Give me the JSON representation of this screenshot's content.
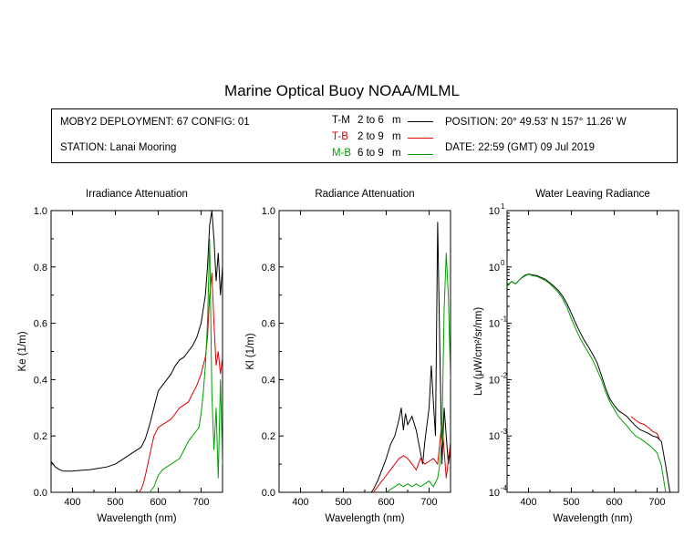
{
  "title": "Marine Optical Buoy NOAA/MLML",
  "info": {
    "deployment": "MOBY2 DEPLOYMENT: 67 CONFIG: 01",
    "station": "STATION: Lanai Mooring",
    "position": "POSITION: 20° 49.53' N   157° 11.26' W",
    "date": "DATE: 22:59 (GMT) 09 Jul 2019"
  },
  "legend": [
    {
      "code": "T-M",
      "range": "2 to 6",
      "unit": "m",
      "color": "#000000"
    },
    {
      "code": "T-B",
      "range": "2 to 9",
      "unit": "m",
      "color": "#e00000"
    },
    {
      "code": "M-B",
      "range": "6 to 9",
      "unit": "m",
      "color": "#00a000"
    }
  ],
  "chart_data": [
    {
      "type": "line",
      "title": "Irradiance Attenuation",
      "xlabel": "Wavelength (nm)",
      "ylabel": "Ke  (1/m)",
      "xlim": [
        350,
        750
      ],
      "ylim": [
        0,
        1
      ],
      "xticks": [
        "400",
        "500",
        "600",
        "700"
      ],
      "yticks": [
        "0.0",
        "0.2",
        "0.4",
        "0.6",
        "0.8",
        "1.0"
      ],
      "series": [
        {
          "name": "T-M",
          "color": "#000000",
          "x": [
            350,
            360,
            370,
            380,
            390,
            400,
            420,
            440,
            460,
            480,
            500,
            520,
            540,
            560,
            570,
            580,
            590,
            600,
            610,
            620,
            630,
            640,
            650,
            660,
            670,
            680,
            690,
            700,
            710,
            715,
            720,
            725,
            730,
            735,
            740,
            745,
            750
          ],
          "y": [
            0.11,
            0.09,
            0.08,
            0.075,
            0.075,
            0.075,
            0.078,
            0.08,
            0.085,
            0.09,
            0.1,
            0.12,
            0.14,
            0.16,
            0.19,
            0.24,
            0.3,
            0.36,
            0.38,
            0.4,
            0.42,
            0.45,
            0.47,
            0.48,
            0.5,
            0.52,
            0.55,
            0.6,
            0.7,
            0.8,
            0.95,
            1.0,
            0.9,
            0.75,
            0.85,
            0.7,
            0.8
          ]
        },
        {
          "name": "T-B",
          "color": "#e00000",
          "x": [
            555,
            560,
            565,
            570,
            580,
            590,
            600,
            610,
            620,
            630,
            640,
            650,
            660,
            670,
            680,
            690,
            700,
            705,
            710,
            715,
            720,
            725,
            730,
            735,
            740,
            745,
            750
          ],
          "y": [
            0.0,
            0.01,
            0.03,
            0.06,
            0.13,
            0.2,
            0.23,
            0.24,
            0.25,
            0.26,
            0.28,
            0.3,
            0.31,
            0.32,
            0.35,
            0.38,
            0.42,
            0.45,
            0.48,
            0.55,
            0.7,
            0.78,
            0.6,
            0.45,
            0.5,
            0.42,
            0.48
          ]
        },
        {
          "name": "M-B",
          "color": "#00a000",
          "x": [
            580,
            590,
            600,
            610,
            620,
            630,
            640,
            650,
            660,
            670,
            680,
            690,
            695,
            700,
            705,
            710,
            715,
            720,
            725,
            730,
            735,
            740,
            745,
            750
          ],
          "y": [
            0.0,
            0.02,
            0.06,
            0.08,
            0.09,
            0.1,
            0.11,
            0.12,
            0.15,
            0.18,
            0.2,
            0.22,
            0.23,
            0.28,
            0.35,
            0.45,
            0.6,
            0.9,
            0.35,
            0.15,
            0.3,
            0.05,
            0.4,
            0.1
          ]
        }
      ]
    },
    {
      "type": "line",
      "title": "Radiance Attenuation",
      "xlabel": "Wavelength (nm)",
      "ylabel": "Kl  (1/m)",
      "xlim": [
        350,
        750
      ],
      "ylim": [
        0,
        1
      ],
      "xticks": [
        "400",
        "500",
        "600",
        "700"
      ],
      "yticks": [
        "0.0",
        "0.2",
        "0.4",
        "0.6",
        "0.8",
        "1.0"
      ],
      "series": [
        {
          "name": "T-M",
          "color": "#000000",
          "x": [
            565,
            570,
            580,
            590,
            600,
            610,
            620,
            630,
            635,
            640,
            645,
            650,
            660,
            670,
            680,
            685,
            690,
            700,
            705,
            710,
            715,
            720,
            725,
            730,
            735,
            740,
            745,
            750
          ],
          "y": [
            0.0,
            0.01,
            0.04,
            0.08,
            0.12,
            0.17,
            0.2,
            0.26,
            0.3,
            0.22,
            0.28,
            0.24,
            0.27,
            0.22,
            0.14,
            0.1,
            0.18,
            0.3,
            0.45,
            0.32,
            0.2,
            0.96,
            0.5,
            0.1,
            0.3,
            0.2,
            0.1,
            0.15
          ]
        },
        {
          "name": "T-B",
          "color": "#e00000",
          "x": [
            570,
            580,
            590,
            600,
            610,
            620,
            630,
            640,
            650,
            660,
            670,
            680,
            690,
            700,
            710,
            720,
            730,
            740,
            750
          ],
          "y": [
            0.0,
            0.02,
            0.04,
            0.06,
            0.08,
            0.1,
            0.12,
            0.13,
            0.12,
            0.1,
            0.08,
            0.12,
            0.1,
            0.11,
            0.12,
            0.1,
            0.25,
            0.05,
            0.18
          ]
        },
        {
          "name": "M-B",
          "color": "#00a000",
          "x": [
            600,
            610,
            620,
            630,
            640,
            650,
            660,
            670,
            680,
            690,
            700,
            710,
            720,
            725,
            730,
            735,
            740,
            745,
            750
          ],
          "y": [
            0.0,
            0.01,
            0.02,
            0.03,
            0.02,
            0.03,
            0.02,
            0.03,
            0.02,
            0.03,
            0.04,
            0.02,
            0.05,
            0.1,
            0.2,
            0.65,
            0.85,
            0.7,
            0.4
          ]
        }
      ]
    },
    {
      "type": "line",
      "title": "Water Leaving Radiance",
      "xlabel": "Wavelength (nm)",
      "ylabel": "Lw  (μW/cm²/sr/nm)",
      "xlim": [
        350,
        750
      ],
      "ylim": [
        0.0001,
        10
      ],
      "yscale": "log",
      "xticks": [
        "400",
        "500",
        "600",
        "700"
      ],
      "yticks": [
        "10",
        "10",
        "10",
        "10",
        "10",
        "10"
      ],
      "yexponents": [
        "1",
        "0",
        "-1",
        "-2",
        "-3",
        "-4"
      ],
      "series": [
        {
          "name": "T-M",
          "color": "#000000",
          "x": [
            350,
            360,
            370,
            380,
            390,
            400,
            410,
            420,
            430,
            440,
            450,
            460,
            470,
            480,
            490,
            500,
            510,
            520,
            530,
            540,
            550,
            560,
            570,
            580,
            590,
            600,
            610,
            620,
            630,
            640,
            650,
            660,
            670,
            680,
            690,
            700,
            710,
            720,
            730
          ],
          "y": [
            0.45,
            0.55,
            0.5,
            0.6,
            0.7,
            0.75,
            0.72,
            0.7,
            0.65,
            0.6,
            0.52,
            0.45,
            0.38,
            0.3,
            0.22,
            0.15,
            0.1,
            0.07,
            0.05,
            0.038,
            0.028,
            0.02,
            0.012,
            0.007,
            0.0045,
            0.0035,
            0.0028,
            0.0025,
            0.0022,
            0.0018,
            0.0015,
            0.0013,
            0.0012,
            0.0011,
            0.001,
            0.00095,
            0.0008,
            0.0003,
            0.0001
          ]
        },
        {
          "name": "M-B",
          "color": "#00a000",
          "x": [
            350,
            360,
            370,
            380,
            390,
            400,
            410,
            420,
            430,
            440,
            450,
            460,
            470,
            480,
            490,
            500,
            510,
            520,
            530,
            540,
            550,
            560,
            570,
            580,
            590,
            600,
            610,
            620,
            630,
            640,
            650,
            660,
            670,
            680,
            690,
            700,
            710,
            720
          ],
          "y": [
            0.45,
            0.55,
            0.5,
            0.6,
            0.68,
            0.74,
            0.7,
            0.68,
            0.62,
            0.57,
            0.5,
            0.42,
            0.35,
            0.27,
            0.19,
            0.12,
            0.08,
            0.055,
            0.04,
            0.03,
            0.022,
            0.015,
            0.01,
            0.006,
            0.004,
            0.003,
            0.0022,
            0.0018,
            0.0015,
            0.0012,
            0.001,
            0.0009,
            0.0008,
            0.0007,
            0.0006,
            0.0005,
            0.0003,
            0.0001
          ]
        },
        {
          "name": "T-B",
          "color": "#e00000",
          "x": [
            640,
            650,
            660,
            670,
            680,
            690,
            700,
            705
          ],
          "y": [
            0.0022,
            0.0019,
            0.0017,
            0.0016,
            0.0014,
            0.0012,
            0.0011,
            0.0009
          ]
        }
      ]
    }
  ]
}
